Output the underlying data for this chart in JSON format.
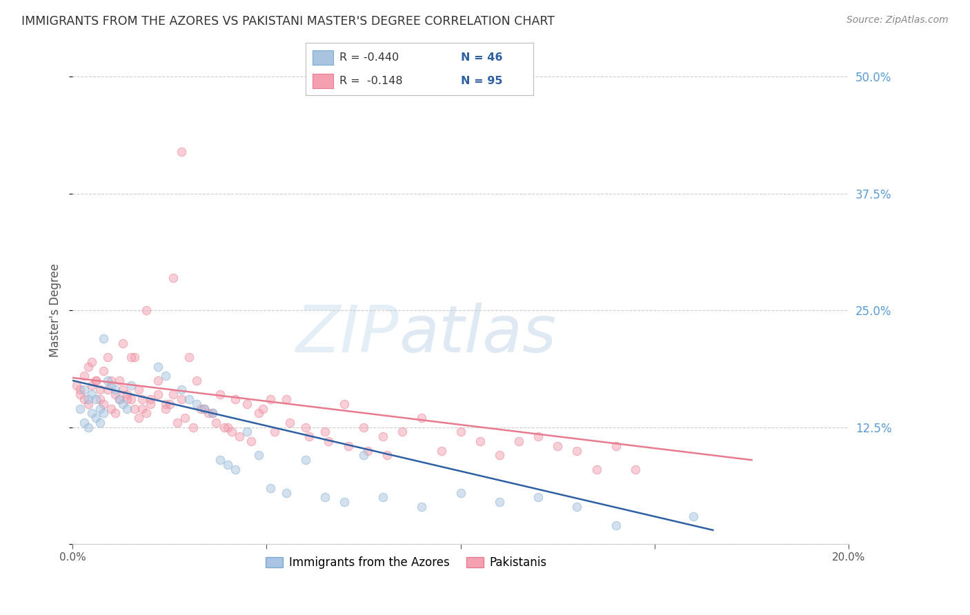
{
  "title": "IMMIGRANTS FROM THE AZORES VS PAKISTANI MASTER'S DEGREE CORRELATION CHART",
  "source": "Source: ZipAtlas.com",
  "ylabel": "Master's Degree",
  "watermark": "ZIPatlas",
  "legend_blue_r": "R = -0.440",
  "legend_blue_n": "N = 46",
  "legend_pink_r": "R =  -0.148",
  "legend_pink_n": "N = 95",
  "legend_blue_label": "Immigrants from the Azores",
  "legend_pink_label": "Pakistanis",
  "right_ytick_labels": [
    "50.0%",
    "37.5%",
    "25.0%",
    "12.5%"
  ],
  "right_ytick_values": [
    0.5,
    0.375,
    0.25,
    0.125
  ],
  "xlim": [
    0.0,
    0.2
  ],
  "ylim": [
    0.0,
    0.5
  ],
  "background_color": "#ffffff",
  "plot_bg_color": "#ffffff",
  "grid_color": "#cccccc",
  "title_color": "#333333",
  "right_label_color": "#5b9bd5",
  "blue_scatter_color": "#a8c4e0",
  "pink_scatter_color": "#f4a0b0",
  "blue_line_color": "#2e5fa3",
  "pink_line_color": "#e87a90",
  "blue_scatter_edge": "#7aaacf",
  "pink_scatter_edge": "#e87a90",
  "blue_points_x": [
    0.002,
    0.003,
    0.004,
    0.005,
    0.006,
    0.007,
    0.008,
    0.009,
    0.01,
    0.011,
    0.012,
    0.013,
    0.014,
    0.015,
    0.003,
    0.004,
    0.005,
    0.006,
    0.007,
    0.008,
    0.022,
    0.024,
    0.028,
    0.03,
    0.032,
    0.034,
    0.036,
    0.038,
    0.04,
    0.042,
    0.045,
    0.048,
    0.051,
    0.055,
    0.06,
    0.065,
    0.07,
    0.075,
    0.08,
    0.09,
    0.1,
    0.11,
    0.12,
    0.13,
    0.14,
    0.16
  ],
  "blue_points_y": [
    0.145,
    0.13,
    0.125,
    0.16,
    0.155,
    0.145,
    0.14,
    0.175,
    0.17,
    0.165,
    0.155,
    0.15,
    0.145,
    0.17,
    0.165,
    0.155,
    0.14,
    0.135,
    0.13,
    0.22,
    0.19,
    0.18,
    0.165,
    0.155,
    0.15,
    0.145,
    0.14,
    0.09,
    0.085,
    0.08,
    0.12,
    0.095,
    0.06,
    0.055,
    0.09,
    0.05,
    0.045,
    0.095,
    0.05,
    0.04,
    0.055,
    0.045,
    0.05,
    0.04,
    0.02,
    0.03
  ],
  "pink_points_x": [
    0.001,
    0.002,
    0.003,
    0.004,
    0.005,
    0.006,
    0.007,
    0.008,
    0.009,
    0.01,
    0.011,
    0.012,
    0.013,
    0.014,
    0.015,
    0.016,
    0.017,
    0.018,
    0.019,
    0.02,
    0.022,
    0.024,
    0.026,
    0.028,
    0.03,
    0.032,
    0.034,
    0.036,
    0.038,
    0.04,
    0.042,
    0.045,
    0.048,
    0.051,
    0.055,
    0.06,
    0.065,
    0.07,
    0.075,
    0.08,
    0.085,
    0.09,
    0.095,
    0.1,
    0.105,
    0.11,
    0.115,
    0.12,
    0.125,
    0.13,
    0.135,
    0.14,
    0.145,
    0.002,
    0.003,
    0.004,
    0.005,
    0.006,
    0.007,
    0.008,
    0.009,
    0.01,
    0.011,
    0.012,
    0.013,
    0.014,
    0.015,
    0.016,
    0.017,
    0.018,
    0.019,
    0.02,
    0.022,
    0.024,
    0.026,
    0.028,
    0.025,
    0.027,
    0.029,
    0.031,
    0.033,
    0.035,
    0.037,
    0.039,
    0.041,
    0.043,
    0.046,
    0.049,
    0.052,
    0.056,
    0.061,
    0.066,
    0.071,
    0.076,
    0.081
  ],
  "pink_points_y": [
    0.17,
    0.165,
    0.18,
    0.19,
    0.195,
    0.175,
    0.165,
    0.185,
    0.2,
    0.175,
    0.16,
    0.155,
    0.215,
    0.16,
    0.155,
    0.2,
    0.165,
    0.145,
    0.25,
    0.155,
    0.175,
    0.15,
    0.285,
    0.155,
    0.2,
    0.175,
    0.145,
    0.14,
    0.16,
    0.125,
    0.155,
    0.15,
    0.14,
    0.155,
    0.155,
    0.125,
    0.12,
    0.15,
    0.125,
    0.115,
    0.12,
    0.135,
    0.1,
    0.12,
    0.11,
    0.095,
    0.11,
    0.115,
    0.105,
    0.1,
    0.08,
    0.105,
    0.08,
    0.16,
    0.155,
    0.15,
    0.17,
    0.175,
    0.155,
    0.15,
    0.165,
    0.145,
    0.14,
    0.175,
    0.165,
    0.155,
    0.2,
    0.145,
    0.135,
    0.155,
    0.14,
    0.15,
    0.16,
    0.145,
    0.16,
    0.42,
    0.15,
    0.13,
    0.135,
    0.125,
    0.145,
    0.14,
    0.13,
    0.125,
    0.12,
    0.115,
    0.11,
    0.145,
    0.12,
    0.13,
    0.115,
    0.11,
    0.105,
    0.1,
    0.095
  ],
  "blue_line_x": [
    0.0,
    0.165
  ],
  "blue_line_y": [
    0.175,
    0.015
  ],
  "pink_line_x": [
    0.0,
    0.175
  ],
  "pink_line_y": [
    0.178,
    0.09
  ],
  "marker_size": 80,
  "marker_alpha": 0.5
}
